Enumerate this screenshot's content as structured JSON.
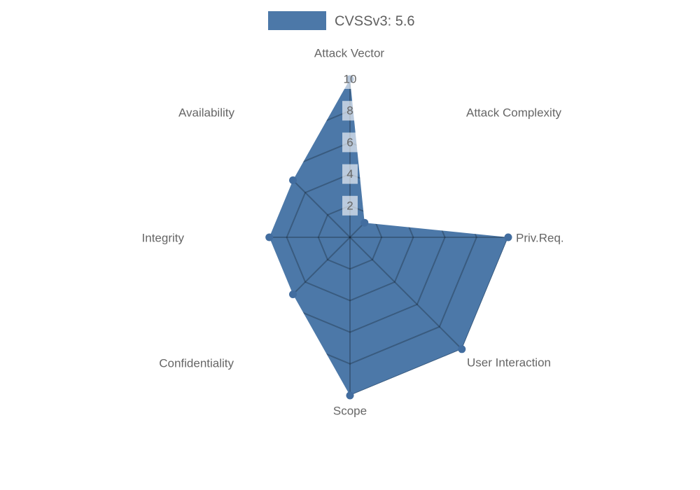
{
  "legend": {
    "label": "CVSSv3: 5.6"
  },
  "chart_data": {
    "type": "radar",
    "title": "CVSSv3: 5.6",
    "categories": [
      "Attack Vector",
      "Attack Complexity",
      "Priv.Req.",
      "User Interaction",
      "Scope",
      "Confidentiality",
      "Integrity",
      "Availability"
    ],
    "series": [
      {
        "name": "CVSSv3: 5.6",
        "values": [
          10,
          1.3,
          10,
          10,
          10,
          5.1,
          5.1,
          5.1
        ]
      }
    ],
    "axis_range": [
      0,
      10
    ],
    "tick_step": 2,
    "ticks": [
      {
        "value": 2,
        "label": "2"
      },
      {
        "value": 4,
        "label": "4"
      },
      {
        "value": 6,
        "label": "6"
      },
      {
        "value": 8,
        "label": "8"
      },
      {
        "value": 10,
        "label": "10"
      }
    ],
    "grid": "polygonal spider web, visible only inside filled series area",
    "legend_position": "top-center",
    "colors": {
      "fill": "#4c78a8",
      "point": "#426d9f",
      "grid_line": "rgba(0,0,0,0.24)",
      "axis_label": "#666666",
      "tick_label": "#666666",
      "tick_backdrop": "rgba(255,255,255,0.62)",
      "legend_text": "#5f5f5f"
    }
  }
}
